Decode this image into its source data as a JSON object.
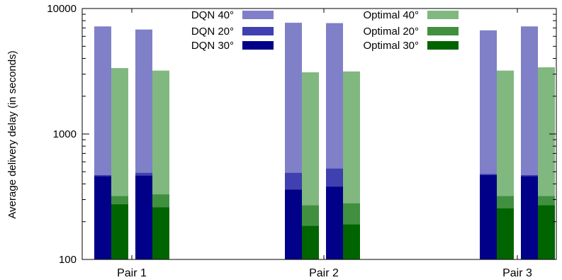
{
  "chart_data": {
    "type": "bar",
    "stacking": "overlaid",
    "ylabel": "Average delivery delay (in seconds)",
    "yscale": "log",
    "ylim": [
      100,
      10000
    ],
    "yticks": [
      {
        "value": 100,
        "label": "100"
      },
      {
        "value": 1000,
        "label": "1000"
      },
      {
        "value": 10000,
        "label": "10000"
      }
    ],
    "categories": [
      "Pair 1",
      "Pair 2",
      "Pair 3"
    ],
    "groups": [
      {
        "name": "DQN",
        "series": [
          {
            "name": "DQN 40°",
            "color": "#8080c8",
            "values": [
              [
                7200,
                6800
              ],
              [
                7700,
                7650
              ],
              [
                6700,
                7200
              ]
            ]
          },
          {
            "name": "DQN 20°",
            "color": "#4040b0",
            "values": [
              [
                470,
                490
              ],
              [
                490,
                530
              ],
              [
                480,
                470
              ]
            ]
          },
          {
            "name": "DQN 30°",
            "color": "#000088",
            "values": [
              [
                460,
                465
              ],
              [
                360,
                380
              ],
              [
                470,
                460
              ]
            ]
          }
        ]
      },
      {
        "name": "Optimal",
        "series": [
          {
            "name": "Optimal 40°",
            "color": "#80b880",
            "values": [
              [
                3350,
                3200
              ],
              [
                3100,
                3150
              ],
              [
                3200,
                3400
              ]
            ]
          },
          {
            "name": "Optimal 20°",
            "color": "#409040",
            "values": [
              [
                320,
                330
              ],
              [
                270,
                280
              ],
              [
                320,
                320
              ]
            ]
          },
          {
            "name": "Optimal 30°",
            "color": "#006400",
            "values": [
              [
                275,
                260
              ],
              [
                185,
                190
              ],
              [
                255,
                270
              ]
            ]
          }
        ]
      }
    ],
    "legend": {
      "placement": "top",
      "columns": 2
    },
    "grid": false
  }
}
